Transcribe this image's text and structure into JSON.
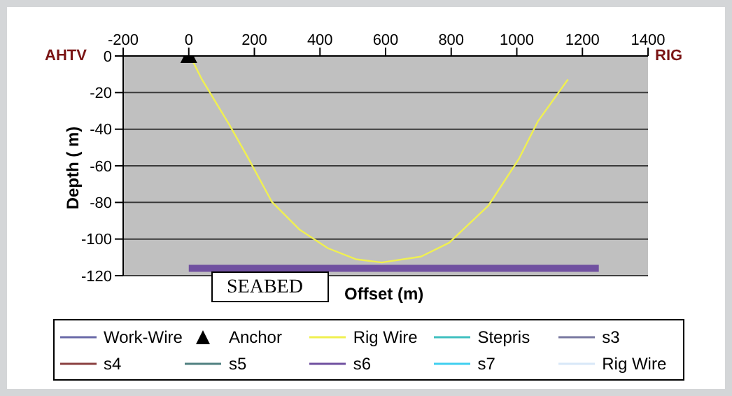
{
  "chart_data": {
    "type": "line",
    "xlabel": "Offset (m)",
    "ylabel": "Depth ( m)",
    "xlim": [
      -200,
      1400
    ],
    "xticks": [
      -200,
      0,
      200,
      400,
      600,
      800,
      1000,
      1200,
      1400
    ],
    "ylim": [
      -120,
      0
    ],
    "yticks": [
      0,
      -20,
      -40,
      -60,
      -80,
      -100,
      -120
    ],
    "grid": "y",
    "legend": "bottom",
    "marker": "none",
    "annotations": [
      "AHTV",
      "RIG",
      "SEABED"
    ],
    "series": [
      {
        "name": "Work-Wire",
        "color": "#6a6aa8"
      },
      {
        "name": "Anchor",
        "type": "scatter",
        "marker": "triangle",
        "color": "#000000",
        "x": [
          0
        ],
        "values": [
          0
        ]
      },
      {
        "name": "Rig Wire",
        "color": "#f0f050",
        "x": [
          4,
          40,
          125,
          182,
          253,
          338,
          424,
          509,
          588,
          708,
          794,
          914,
          1007,
          1064,
          1156
        ],
        "values": [
          0,
          -12.8,
          -38,
          -56,
          -79.6,
          -94.9,
          -105,
          -111,
          -112.8,
          -109.6,
          -102,
          -81.6,
          -56,
          -35.8,
          -12.8
        ]
      },
      {
        "name": "Stepris",
        "color": "#40c0c0"
      },
      {
        "name": "s3",
        "color": "#7878a0"
      },
      {
        "name": "s4",
        "color": "#8a4040"
      },
      {
        "name": "s5",
        "color": "#508080"
      },
      {
        "name": "s6",
        "color": "#7050a0",
        "x": [
          0,
          1250
        ],
        "values": [
          -116,
          -116
        ]
      },
      {
        "name": "s7",
        "color": "#40d0f0"
      },
      {
        "name": "Rig Wire",
        "color": "#d8e8f8"
      }
    ]
  }
}
